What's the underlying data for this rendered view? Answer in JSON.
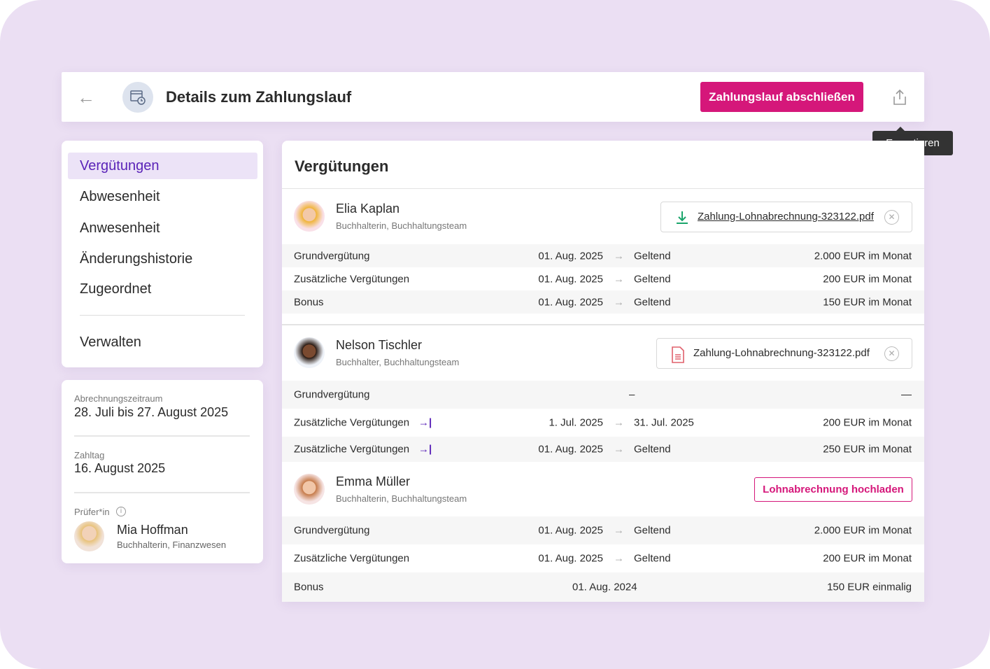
{
  "header": {
    "title": "Details zum Zahlungslauf",
    "primary_button": "Zahlungslauf abschließen",
    "export_tooltip": "Exportieren"
  },
  "nav": {
    "items": [
      "Vergütungen",
      "Abwesenheit",
      "Anwesenheit",
      "Änderungshistorie",
      "Zugeordnet"
    ],
    "manage": "Verwalten",
    "active": "Vergütungen"
  },
  "info": {
    "period_label": "Abrechnungszeitraum",
    "period": "28. Juli bis 27. August 2025",
    "payday_label": "Zahltag",
    "payday": "16. August 2025",
    "reviewer_label": "Prüfer*in",
    "reviewer_name": "Mia Hoffman",
    "reviewer_role": "Buchhalterin, Finanzwesen"
  },
  "main": {
    "title": "Vergütungen",
    "employees": [
      {
        "name": "Elia Kaplan",
        "role": "Buchhalterin, Buchhaltungsteam",
        "file": "Zahlung-Lohnabrechnung-323122.pdf",
        "file_icon": "download-icon",
        "rows": [
          {
            "label": "Grundvergütung",
            "start": "01. Aug. 2025",
            "end": "Geltend",
            "amount": "2.000 EUR im Monat"
          },
          {
            "label": "Zusätzliche Vergütungen",
            "start": "01. Aug. 2025",
            "end": "Geltend",
            "amount": "200 EUR im Monat"
          },
          {
            "label": "Bonus",
            "start": "01. Aug. 2025",
            "end": "Geltend",
            "amount": "150 EUR im Monat"
          }
        ]
      },
      {
        "name": "Nelson Tischler",
        "role": "Buchhalter, Buchhaltungsteam",
        "file": "Zahlung-Lohnabrechnung-323122.pdf",
        "file_icon": "pdf-file-icon",
        "rows": [
          {
            "label": "Grundvergütung",
            "start": "–",
            "amount": "—"
          },
          {
            "label": "Zusätzliche Vergütungen",
            "start": "1. Jul. 2025",
            "end": "31. Jul. 2025",
            "amount": "200 EUR im Monat",
            "flag": true
          },
          {
            "label": "Zusätzliche Vergütungen",
            "start": "01. Aug. 2025",
            "end": "Geltend",
            "amount": "250 EUR im Monat",
            "flag": true
          }
        ]
      },
      {
        "name": "Emma Müller",
        "role": "Buchhalterin, Buchhaltungsteam",
        "upload": "Lohnabrechnung hochladen",
        "rows": [
          {
            "label": "Grundvergütung",
            "start": "01. Aug. 2025",
            "end": "Geltend",
            "amount": "2.000 EUR im Monat"
          },
          {
            "label": "Zusätzliche Vergütungen",
            "start": "01. Aug. 2025",
            "end": "Geltend",
            "amount": "200 EUR im Monat"
          },
          {
            "label": "Bonus",
            "start": "01. Aug. 2024",
            "amount": "150 EUR einmalig"
          }
        ]
      }
    ]
  },
  "colors": {
    "accent": "#d5177a",
    "nav_active": "#5a23b8",
    "background": "#ebdff3"
  }
}
